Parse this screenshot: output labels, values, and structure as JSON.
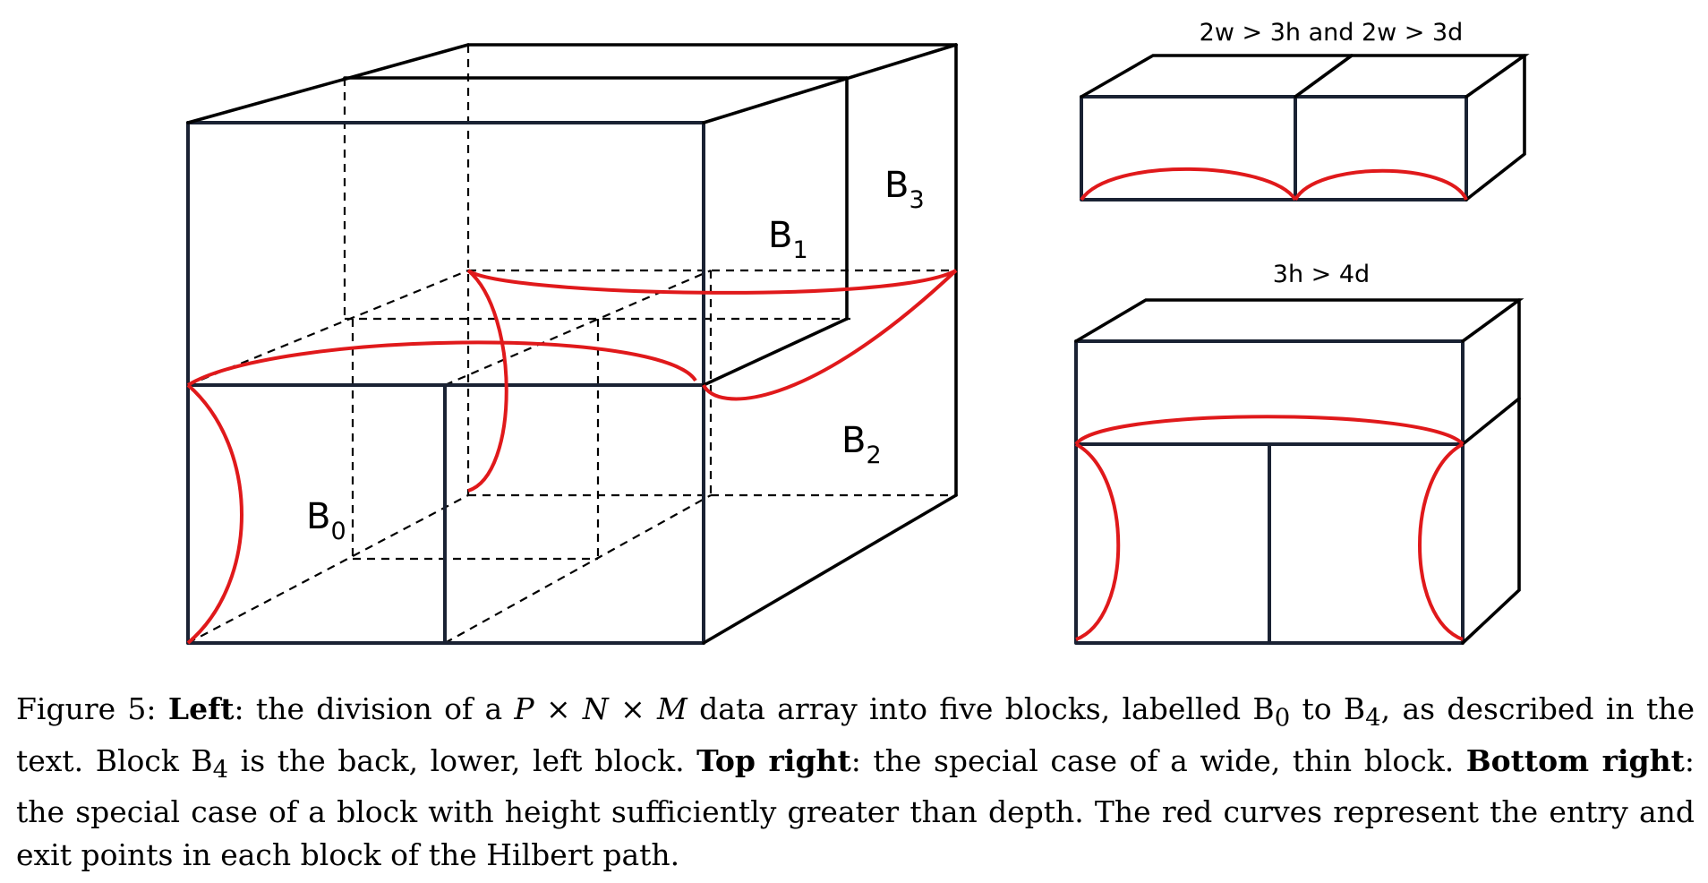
{
  "figure": {
    "block_labels": {
      "b0": {
        "base": "B",
        "sub": "0"
      },
      "b1": {
        "base": "B",
        "sub": "1"
      },
      "b2": {
        "base": "B",
        "sub": "2"
      },
      "b3": {
        "base": "B",
        "sub": "3"
      }
    },
    "top_right_condition": "2w > 3h and 2w > 3d",
    "bottom_right_condition": "3h > 4d",
    "colors": {
      "edge": "#1a2233",
      "curve": "#e0191b"
    }
  },
  "caption": {
    "figure_label": "Figure 5:",
    "left_label": "Left",
    "left_text_1": ": the division of a ",
    "var_p": "P",
    "times_1": " × ",
    "var_n": "N",
    "times_2": " × ",
    "var_m": "M",
    "left_text_2": " data array into five blocks, labelled B",
    "sub_0": "0",
    "left_text_3": " to B",
    "sub_4": "4",
    "left_text_4": ", as described in the text. Block B",
    "sub_4b": "4",
    "left_text_5": " is the back, lower, left block. ",
    "top_right_label": "Top right",
    "top_right_text": ": the special case of a wide, thin block. ",
    "bottom_right_label": "Bottom right",
    "bottom_right_text": ": the special case of a block with height sufficiently greater than depth. The red curves represent the entry and exit points in each block of the Hilbert path."
  }
}
